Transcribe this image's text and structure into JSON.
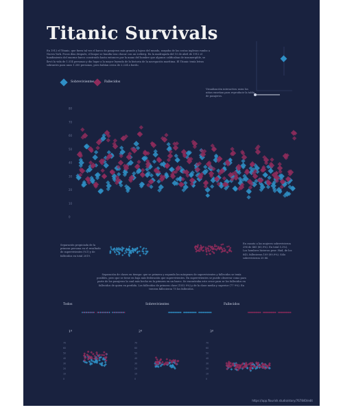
{
  "title": "Titanic Survivals",
  "intro": "En 1912 el Titanic, que fuera tal vez el barco de pasajeros más grande y lujoso del mundo, zarpaba de las costas inglesas rumbo a Nueva York. Pocos días después, el buque se hundía tras chocar con un iceberg. En la madrugada del 15 de abril de 1912 el hundimiento del enorme barco construido hasta entonces por la mano del hombre que algunos calificaban de insumergible, se llevó la vida de 1.514 personas y dio lugar a la mayor leyenda de la historia de la navegación marítima. El Titanic tenía letras sobrantes para unos 1.200 personas, pero habían cerca de 2.224 a bordo.",
  "legend": {
    "survivors": "Sobrevivientes",
    "deceased": "Fallecidos"
  },
  "colors": {
    "background": "#19223f",
    "survivors": "#2f8fc6",
    "deceased": "#8f2c5c",
    "text": "#f2f2f2"
  },
  "interactive_note": "Visualización interactiva: mira los niños enseñan para reproducir la tabla de pasajeros.",
  "section_note_left": "Separación propiciada de la primera persona en el resultado de supervivientes (%1) y de fallecidos en total 2019.",
  "section_note_right": "En cuanto a las mujeres sobrevivieron 296 de 465 (65,9%). En total 5.3%). Los hombres hicieron peor. Had, de los 845, fallecieron 109 (89,9%). Sólo sobrevivieron 20.86.",
  "mid_paragraph": "Separación de clases en tiempo: que se primera y segunda los márgenes de supervivientes y fallecidos se tenía posibles, pero que se tiene en baja más federación que supervivientes. En supervivientes se puede observar como para parte de los pasajeros la cual más hecho en la primera en un barco. Se encontraba este crece para se los fallecidos en fallecidos de quien en perdida. Los fallecidos de primera clase (1552 9%) y de la clase media y superior (77 9%). En tercera fallecieron 75 los fallecidos.",
  "sections": [
    {
      "label": "Todos"
    },
    {
      "label": "Sobrevivientes"
    },
    {
      "label": "Fallecidos"
    }
  ],
  "class_labels": [
    "1ª",
    "2ª",
    "3ª"
  ],
  "source": "https://app.flourish.studio/story/767840/edit",
  "chart_data": [
    {
      "type": "scatter",
      "title": "",
      "xlabel": "",
      "ylabel": "",
      "ylim": [
        0,
        80
      ],
      "yticks": [
        "0",
        "10",
        "20",
        "30",
        "40",
        "50",
        "60",
        "70",
        "80"
      ],
      "grid": false,
      "legend_position": "top-left",
      "series": [
        {
          "name": "Sobrevivientes",
          "points": [
            [
              2,
              29
            ],
            [
              5,
              40
            ],
            [
              8,
              24
            ],
            [
              11,
              52
            ],
            [
              14,
              35
            ],
            [
              17,
              27
            ],
            [
              20,
              44
            ],
            [
              23,
              31
            ],
            [
              26,
              19
            ],
            [
              29,
              58
            ],
            [
              32,
              38
            ],
            [
              35,
              23
            ],
            [
              38,
              45
            ],
            [
              41,
              30
            ],
            [
              44,
              36
            ],
            [
              47,
              26
            ],
            [
              50,
              48
            ],
            [
              53,
              33
            ],
            [
              56,
              21
            ],
            [
              59,
              40
            ],
            [
              62,
              29
            ],
            [
              65,
              54
            ],
            [
              68,
              34
            ],
            [
              71,
              24
            ],
            [
              74,
              43
            ],
            [
              77,
              31
            ],
            [
              80,
              37
            ],
            [
              83,
              27
            ],
            [
              86,
              46
            ],
            [
              89,
              32
            ],
            [
              92,
              22
            ],
            [
              95,
              39
            ],
            [
              98,
              30
            ],
            [
              101,
              50
            ],
            [
              104,
              35
            ],
            [
              107,
              25
            ],
            [
              110,
              42
            ],
            [
              113,
              28
            ],
            [
              116,
              34
            ],
            [
              119,
              22
            ],
            [
              122,
              47
            ],
            [
              125,
              31
            ],
            [
              128,
              26
            ],
            [
              131,
              38
            ],
            [
              134,
              28
            ],
            [
              137,
              44
            ],
            [
              140,
              33
            ],
            [
              143,
              20
            ],
            [
              146,
              36
            ],
            [
              149,
              27
            ],
            [
              152,
              42
            ],
            [
              155,
              29
            ],
            [
              158,
              23
            ],
            [
              161,
              35
            ],
            [
              164,
              26
            ],
            [
              167,
              40
            ],
            [
              170,
              30
            ],
            [
              173,
              21
            ],
            [
              176,
              34
            ],
            [
              179,
              25
            ],
            [
              182,
              38
            ],
            [
              185,
              28
            ],
            [
              188,
              19
            ],
            [
              191,
              33
            ],
            [
              194,
              24
            ],
            [
              197,
              36
            ],
            [
              200,
              27
            ],
            [
              203,
              22
            ],
            [
              206,
              31
            ],
            [
              209,
              25
            ],
            [
              212,
              34
            ],
            [
              215,
              23
            ],
            [
              218,
              28
            ],
            [
              221,
              20
            ],
            [
              224,
              30
            ],
            [
              227,
              24
            ],
            [
              230,
              17
            ],
            [
              233,
              27
            ],
            [
              236,
              21
            ]
          ]
        },
        {
          "name": "Fallecidos",
          "points": [
            [
              3,
              46
            ],
            [
              6,
              34
            ],
            [
              9,
              60
            ],
            [
              12,
              28
            ],
            [
              15,
              50
            ],
            [
              18,
              38
            ],
            [
              21,
              24
            ],
            [
              24,
              55
            ],
            [
              27,
              41
            ],
            [
              30,
              30
            ],
            [
              33,
              62
            ],
            [
              36,
              45
            ],
            [
              39,
              33
            ],
            [
              42,
              52
            ],
            [
              45,
              27
            ],
            [
              48,
              40
            ],
            [
              51,
              58
            ],
            [
              54,
              36
            ],
            [
              57,
              44
            ],
            [
              60,
              29
            ],
            [
              63,
              49
            ],
            [
              66,
              37
            ],
            [
              69,
              61
            ],
            [
              72,
              31
            ],
            [
              75,
              47
            ],
            [
              78,
              39
            ],
            [
              81,
              26
            ],
            [
              84,
              53
            ],
            [
              87,
              34
            ],
            [
              90,
              42
            ],
            [
              93,
              28
            ],
            [
              96,
              57
            ],
            [
              99,
              38
            ],
            [
              102,
              45
            ],
            [
              105,
              30
            ],
            [
              108,
              51
            ],
            [
              111,
              36
            ],
            [
              114,
              24
            ],
            [
              117,
              48
            ],
            [
              120,
              33
            ],
            [
              123,
              41
            ],
            [
              126,
              27
            ],
            [
              129,
              54
            ],
            [
              132,
              35
            ],
            [
              135,
              30
            ],
            [
              138,
              46
            ],
            [
              141,
              25
            ],
            [
              144,
              39
            ],
            [
              147,
              32
            ],
            [
              150,
              50
            ],
            [
              153,
              28
            ],
            [
              156,
              43
            ],
            [
              159,
              34
            ],
            [
              162,
              24
            ],
            [
              165,
              40
            ],
            [
              168,
              31
            ],
            [
              171,
              47
            ],
            [
              174,
              29
            ],
            [
              177,
              37
            ],
            [
              180,
              22
            ],
            [
              183,
              44
            ],
            [
              186,
              33
            ],
            [
              189,
              26
            ],
            [
              192,
              39
            ],
            [
              195,
              30
            ],
            [
              198,
              48
            ],
            [
              201,
              27
            ],
            [
              204,
              35
            ],
            [
              207,
              42
            ],
            [
              210,
              25
            ],
            [
              213,
              38
            ],
            [
              216,
              31
            ],
            [
              219,
              29
            ],
            [
              222,
              36
            ],
            [
              225,
              26
            ],
            [
              228,
              45
            ],
            [
              231,
              28
            ],
            [
              234,
              33
            ],
            [
              237,
              62
            ]
          ]
        }
      ]
    },
    {
      "type": "scatter",
      "title": "",
      "ylim": [
        0,
        80
      ],
      "legend_position": "none",
      "series": [
        {
          "name": "Sobrevivientes",
          "mean": 27,
          "spread": 14,
          "count": 90
        }
      ]
    },
    {
      "type": "scatter",
      "title": "",
      "ylim": [
        0,
        80
      ],
      "legend_position": "none",
      "series": [
        {
          "name": "Fallecidos",
          "mean": 31,
          "spread": 13,
          "count": 90
        }
      ]
    },
    {
      "type": "scatter",
      "title": "1ª",
      "ylim": [
        0,
        80
      ],
      "yticks": [
        "0",
        "10",
        "20",
        "30",
        "40",
        "50",
        "60",
        "70"
      ],
      "legend_position": "none",
      "series": [
        {
          "name": "Sobrevivientes",
          "mean": 36,
          "spread": 14,
          "count": 45
        },
        {
          "name": "Fallecidos",
          "mean": 44,
          "spread": 12,
          "count": 35
        }
      ]
    },
    {
      "type": "scatter",
      "title": "2ª",
      "ylim": [
        0,
        80
      ],
      "yticks": [
        "0",
        "10",
        "20",
        "30",
        "40",
        "50",
        "60",
        "70"
      ],
      "legend_position": "none",
      "series": [
        {
          "name": "Sobrevivientes",
          "mean": 28,
          "spread": 12,
          "count": 35
        },
        {
          "name": "Fallecidos",
          "mean": 32,
          "spread": 11,
          "count": 35
        }
      ]
    },
    {
      "type": "scatter",
      "title": "3ª",
      "ylim": [
        0,
        80
      ],
      "yticks": [
        "0",
        "10",
        "20",
        "30",
        "40",
        "50",
        "60",
        "70"
      ],
      "legend_position": "none",
      "series": [
        {
          "name": "Sobrevivientes",
          "mean": 24,
          "spread": 9,
          "count": 45
        },
        {
          "name": "Fallecidos",
          "mean": 26,
          "spread": 10,
          "count": 90
        }
      ]
    }
  ]
}
